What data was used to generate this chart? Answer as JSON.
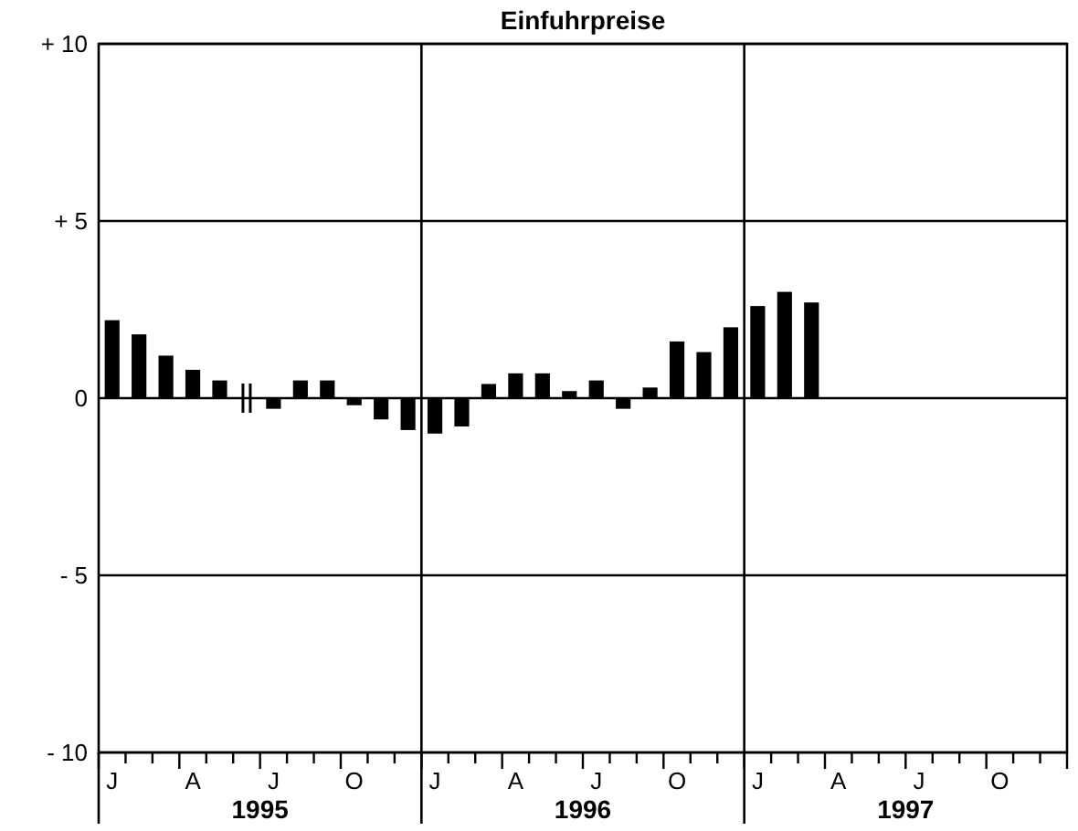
{
  "chart_data": {
    "type": "bar",
    "title": "Einfuhrpreise",
    "categories": [
      "J",
      null,
      null,
      "A",
      null,
      null,
      "J",
      null,
      null,
      "O",
      null,
      null,
      "J",
      null,
      null,
      "A",
      null,
      null,
      "J",
      null,
      null,
      "O",
      null,
      null,
      "J",
      null,
      null,
      "A",
      null,
      null,
      "J",
      null,
      null,
      "O",
      null,
      null
    ],
    "values": [
      2.2,
      1.8,
      1.2,
      0.8,
      0.5,
      null,
      -0.3,
      0.5,
      0.5,
      -0.2,
      -0.6,
      -0.9,
      -1.0,
      -0.8,
      0.4,
      0.7,
      0.7,
      0.2,
      0.5,
      -0.3,
      0.3,
      1.6,
      1.3,
      2.0,
      2.6,
      3.0,
      2.7,
      null,
      null,
      null,
      null,
      null,
      null,
      null,
      null,
      null
    ],
    "color": "#000000",
    "ylim": [
      -10,
      10
    ],
    "yticks": [
      {
        "value": 10,
        "label": "+ 10"
      },
      {
        "value": 5,
        "label": "+ 5"
      },
      0,
      {
        "value": -5,
        "label": "- 5"
      },
      {
        "value": -10,
        "label": "- 10"
      }
    ],
    "grid": true,
    "annotations": [
      "1995",
      "1996",
      "1997"
    ]
  }
}
